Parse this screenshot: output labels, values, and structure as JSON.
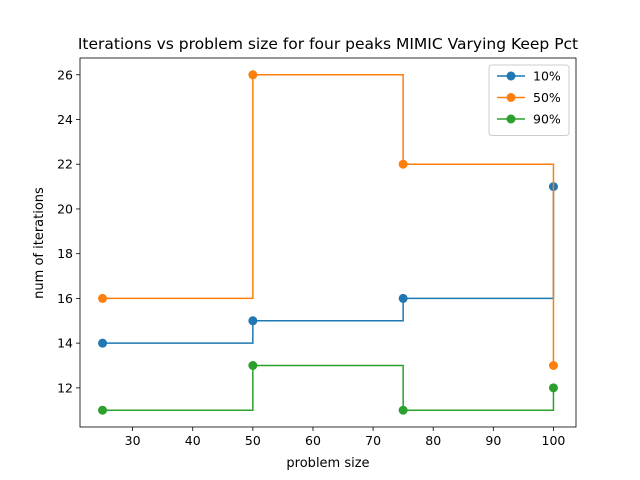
{
  "chart_data": {
    "type": "line",
    "step": "post",
    "title": "Iterations vs problem size for four peaks MIMIC Varying Keep Pct",
    "xlabel": "problem size",
    "ylabel": "num of iterations",
    "xlim": [
      21.25,
      103.75
    ],
    "ylim": [
      10.25,
      26.75
    ],
    "xticks": [
      30,
      40,
      50,
      60,
      70,
      80,
      90,
      100
    ],
    "yticks": [
      12,
      14,
      16,
      18,
      20,
      22,
      24,
      26
    ],
    "grid": false,
    "legend_position": "top-right",
    "x": [
      25,
      50,
      75,
      100
    ],
    "series": [
      {
        "name": "10%",
        "color": "#1f77b4",
        "values": [
          14,
          15,
          16,
          21
        ]
      },
      {
        "name": "50%",
        "color": "#ff7f0e",
        "values": [
          16,
          26,
          22,
          13
        ]
      },
      {
        "name": "90%",
        "color": "#2ca02c",
        "values": [
          11,
          13,
          11,
          12
        ]
      }
    ]
  }
}
